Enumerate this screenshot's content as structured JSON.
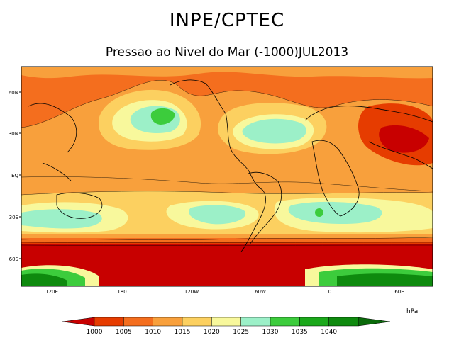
{
  "header": {
    "title": "INPE/CPTEC",
    "subtitle": "Pressao ao Nivel do Mar (-1000)JUL2013"
  },
  "map": {
    "lat_ticks": [
      "60N",
      "30N",
      "EQ",
      "30S",
      "60S"
    ],
    "lon_ticks": [
      "120E",
      "180",
      "120W",
      "60W",
      "0",
      "60E"
    ]
  },
  "colorbar": {
    "unit": "hPa",
    "levels": [
      "1000",
      "1005",
      "1010",
      "1015",
      "1020",
      "1025",
      "1030",
      "1035",
      "1040"
    ],
    "colors": [
      "#c80000",
      "#e63c00",
      "#f46e1e",
      "#f8a03c",
      "#fcd060",
      "#f8f89c",
      "#9cf0c8",
      "#3ccc3c",
      "#1aa81a",
      "#0e8a0e",
      "#0a6a0a"
    ]
  }
}
